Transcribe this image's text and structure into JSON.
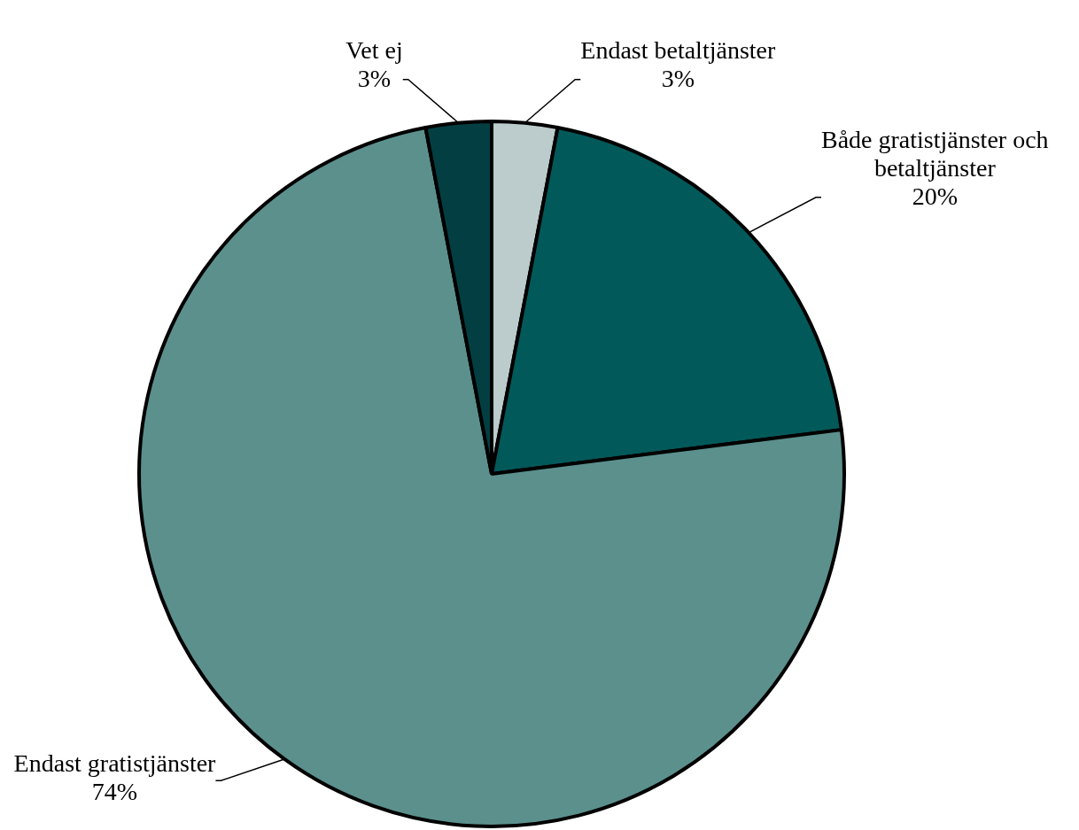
{
  "chart_data": {
    "type": "pie",
    "categories": [
      "Endast betaltjänster",
      "Både gratistjänster och betaltjänster",
      "Endast gratistjänster",
      "Vet ej"
    ],
    "values": [
      3,
      20,
      74,
      3
    ],
    "value_labels": [
      "3%",
      "20%",
      "74%",
      "3%"
    ],
    "colors": [
      "#bccbcb",
      "#02595a",
      "#5b908d",
      "#033f42"
    ],
    "legend": false
  }
}
